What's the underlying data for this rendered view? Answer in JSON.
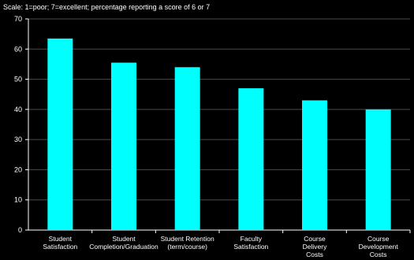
{
  "chart_data": {
    "type": "bar",
    "title": "",
    "annotation": "Scale: 1=poor; 7=excellent;  percentage reporting a score of 6 or 7",
    "xlabel": "",
    "ylabel": "",
    "ylim": [
      0,
      70
    ],
    "yticks": [
      0,
      10,
      20,
      30,
      40,
      50,
      60,
      70
    ],
    "grid": true,
    "legend": "none",
    "bar_color": "#00FFFF",
    "background_color": "#000000",
    "categories": [
      [
        "Student",
        "Satisfaction"
      ],
      [
        "Student",
        "Completion/Graduation"
      ],
      [
        "Student Retention",
        "(term/course)"
      ],
      [
        "Faculty",
        "Satisfaction"
      ],
      [
        "Course",
        "Delivery",
        "Costs"
      ],
      [
        "Course",
        "Development",
        "Costs"
      ]
    ],
    "values": [
      63.5,
      55.5,
      54,
      47,
      43,
      40
    ]
  }
}
